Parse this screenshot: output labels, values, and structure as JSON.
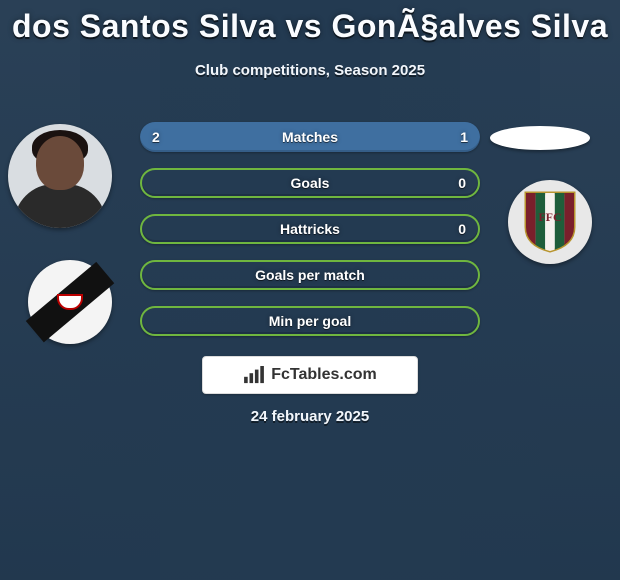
{
  "background_color": "#233a51",
  "text_color": "#fafcff",
  "title": "dos Santos Silva vs GonÃ§alves Silva",
  "title_fontsize": 32,
  "subtitle": "Club competitions, Season 2025",
  "subtitle_fontsize": 15,
  "date": "24 february 2025",
  "watermark": {
    "label": "FcTables.com",
    "icon_color": "#333333"
  },
  "pill_colors": {
    "solid_blue": "#3f6fa0",
    "outline_green": "#6fb63f"
  },
  "stats": {
    "type": "comparison-table",
    "rows": [
      {
        "label": "Matches",
        "left": "2",
        "right": "1",
        "style": "solid"
      },
      {
        "label": "Goals",
        "left": "",
        "right": "0",
        "style": "outline"
      },
      {
        "label": "Hattricks",
        "left": "",
        "right": "0",
        "style": "outline"
      },
      {
        "label": "Goals per match",
        "left": "",
        "right": "",
        "style": "outline"
      },
      {
        "label": "Min per goal",
        "left": "",
        "right": "",
        "style": "outline"
      }
    ]
  },
  "left_player": {
    "name": "dos Santos Silva"
  },
  "right_player": {
    "name": "GonÃ§alves Silva"
  },
  "left_club": {
    "name": "Vasco da Gama",
    "bg": "#f4f4f4",
    "sash": "#111111",
    "accent": "#b00000"
  },
  "right_club": {
    "name": "Fluminense",
    "bg": "#e8e8e8",
    "shield_stripes": [
      "#7a1f2b",
      "#1f5e3a",
      "#f6f2ee",
      "#1f5e3a",
      "#7a1f2b"
    ],
    "shield_border": "#b8952f"
  }
}
